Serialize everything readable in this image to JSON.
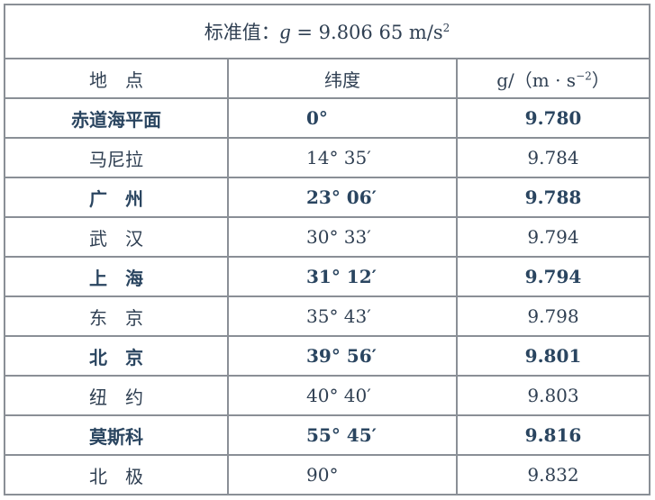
{
  "title": {
    "prefix": "标准值：",
    "symbol": "g",
    "equals": " = 9.806 65 m/s",
    "exp": "2"
  },
  "headers": {
    "location": "地　点",
    "latitude": "纬度",
    "g_prefix": "g/（m · s",
    "g_exp": "−2",
    "g_suffix": "）"
  },
  "rows": [
    {
      "location": "赤道海平面",
      "latitude": "0°",
      "g": "9.780"
    },
    {
      "location": "马尼拉",
      "latitude": "14°  35′",
      "g": "9.784"
    },
    {
      "location": "广　州",
      "latitude": "23°  06′",
      "g": "9.788"
    },
    {
      "location": "武　汉",
      "latitude": "30°  33′",
      "g": "9.794"
    },
    {
      "location": "上　海",
      "latitude": "31°  12′",
      "g": "9.794"
    },
    {
      "location": "东　京",
      "latitude": "35°  43′",
      "g": "9.798"
    },
    {
      "location": "北　京",
      "latitude": "39°  56′",
      "g": "9.801"
    },
    {
      "location": "纽　约",
      "latitude": "40°  40′",
      "g": "9.803"
    },
    {
      "location": "莫斯科",
      "latitude": "55°  45′",
      "g": "9.816"
    },
    {
      "location": "北　极",
      "latitude": "90°",
      "g": "9.832"
    }
  ]
}
